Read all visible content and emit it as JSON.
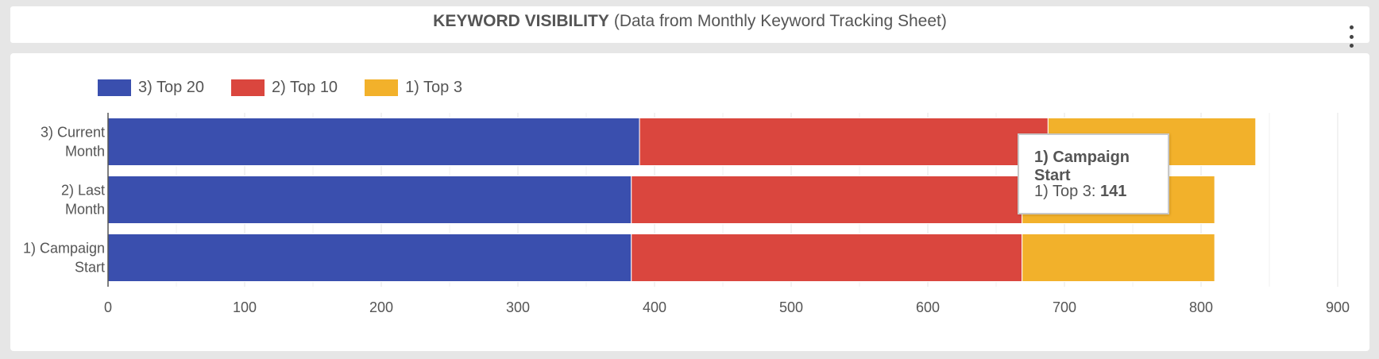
{
  "header": {
    "title_bold": "KEYWORD VISIBILITY",
    "title_rest": "(Data from Monthly Keyword Tracking Sheet)",
    "menu_icon": "vertical-ellipsis-icon"
  },
  "chart_data": {
    "type": "bar",
    "orientation": "horizontal",
    "stacked": true,
    "categories": [
      "3) Current Month",
      "2) Last Month",
      "1) Campaign Start"
    ],
    "series": [
      {
        "name": "3) Top 20",
        "color": "#3a4fae",
        "values": [
          389,
          383,
          383
        ]
      },
      {
        "name": "2) Top 10",
        "color": "#da463e",
        "values": [
          299,
          286,
          286
        ]
      },
      {
        "name": "1) Top 3",
        "color": "#f2b12b",
        "values": [
          152,
          141,
          141
        ]
      }
    ],
    "xlim": [
      0,
      900
    ],
    "xticks": [
      0,
      100,
      200,
      300,
      400,
      500,
      600,
      700,
      800,
      900
    ],
    "grid": true,
    "legend_position": "top-left",
    "tooltip": {
      "title": "1) Campaign Start",
      "series_label": "1) Top 3",
      "value": "141"
    }
  }
}
